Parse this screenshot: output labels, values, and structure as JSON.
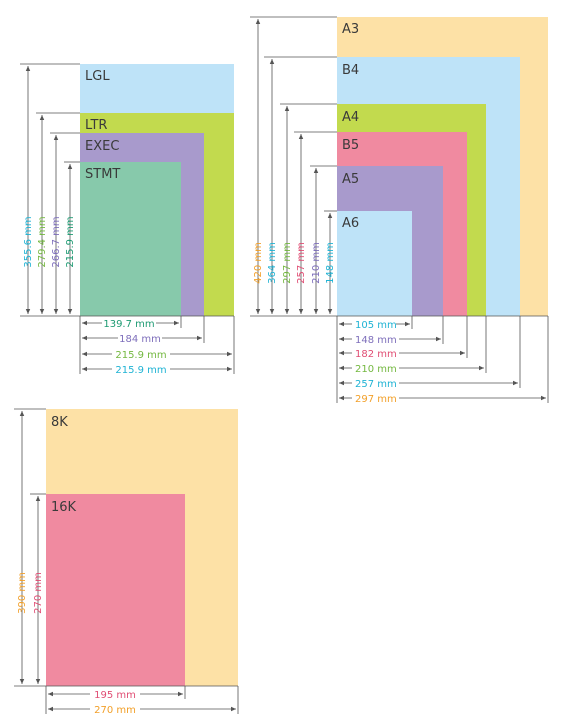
{
  "colors": {
    "LGL": "#bee3f8",
    "LTR": "#c2da4e",
    "EXEC": "#a89acc",
    "STMT": "#87c9ab",
    "A3": "#fde1a6",
    "B4": "#bee3f8",
    "A4": "#c2da4e",
    "B5": "#f08aa0",
    "A5": "#a89acc",
    "A6": "#bee3f8",
    "8K": "#fde1a6",
    "16K": "#f08aa0",
    "text_orange": "#f2a02a",
    "text_cyan": "#1fb3d4",
    "text_green": "#74b840",
    "text_purple": "#7e6fbb",
    "text_pink": "#e04e74",
    "text_teal": "#1d9a72",
    "line": "#555555"
  },
  "us_group": {
    "labels": {
      "lgl": "LGL",
      "ltr": "LTR",
      "exec": "EXEC",
      "stmt": "STMT"
    },
    "heights": {
      "lgl": "355.6 mm",
      "ltr": "279.4 mm",
      "exec": "266.7 mm",
      "stmt": "215.9 mm"
    },
    "widths": {
      "stmt": "139.7 mm",
      "exec": "184 mm",
      "ltr": "215.9 mm",
      "lgl": "215.9 mm"
    }
  },
  "iso_group": {
    "labels": {
      "a3": "A3",
      "b4": "B4",
      "a4": "A4",
      "b5": "B5",
      "a5": "A5",
      "a6": "A6"
    },
    "heights": {
      "a3": "420 mm",
      "b4": "364 mm",
      "a4": "297 mm",
      "b5": "257 mm",
      "a5": "210 mm",
      "a6": "148 mm"
    },
    "widths": {
      "a6": "105 mm",
      "a5": "148 mm",
      "b5": "182 mm",
      "a4": "210 mm",
      "b4": "257 mm",
      "a3": "297 mm"
    }
  },
  "k_group": {
    "labels": {
      "k8": "8K",
      "k16": "16K"
    },
    "heights": {
      "k8": "390 mm",
      "k16": "270 mm"
    },
    "widths": {
      "k16": "195 mm",
      "k8": "270 mm"
    }
  }
}
